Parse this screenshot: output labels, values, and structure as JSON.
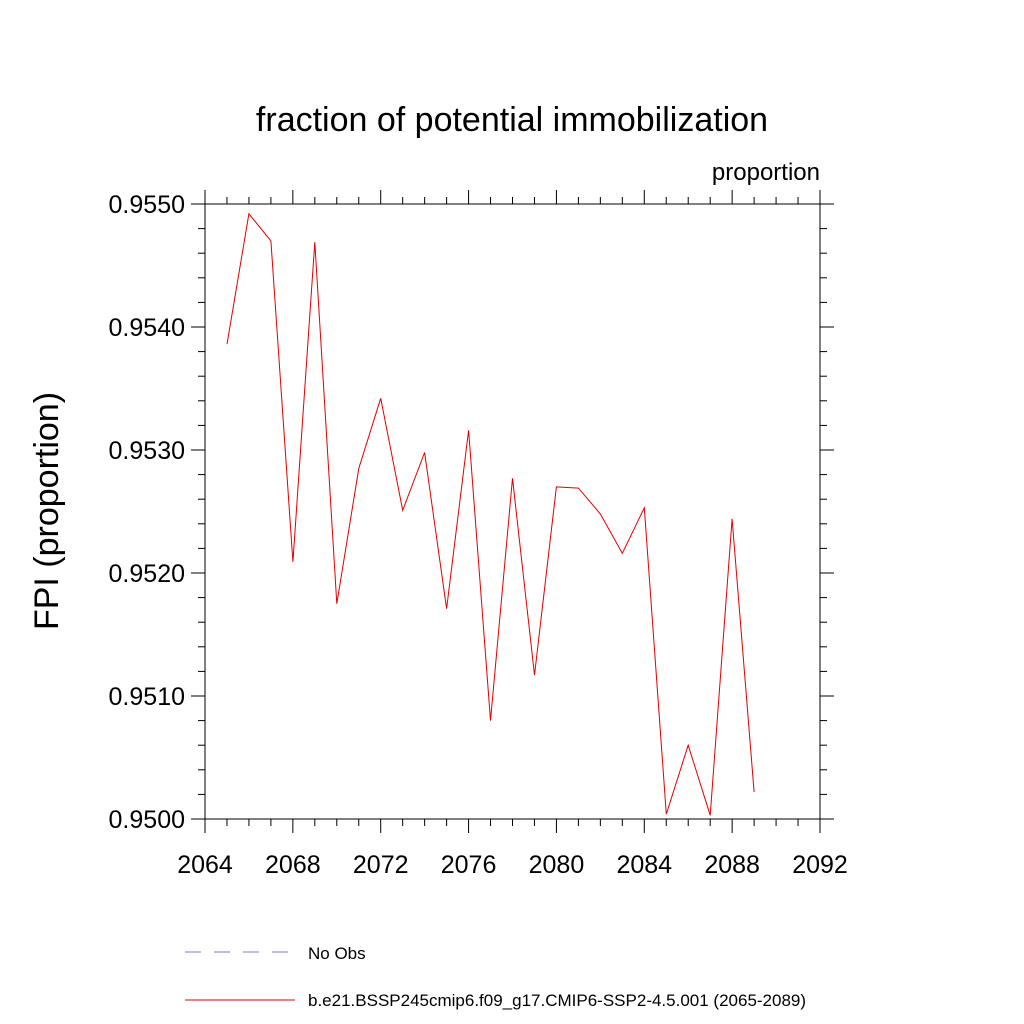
{
  "chart_data": {
    "type": "line",
    "title": "fraction of potential immobilization",
    "subtitle": "proportion",
    "xlabel": "",
    "ylabel": "FPI  (proportion)",
    "xlim": [
      2064,
      2092
    ],
    "ylim": [
      0.95,
      0.955
    ],
    "x_ticks": [
      "2064",
      "2068",
      "2072",
      "2076",
      "2080",
      "2084",
      "2088",
      "2092"
    ],
    "y_ticks": [
      "0.9500",
      "0.9510",
      "0.9520",
      "0.9530",
      "0.9540",
      "0.9550"
    ],
    "grid": false,
    "legend_position": "bottom",
    "legend": [
      {
        "label": "No Obs",
        "color": "#7b7bd0",
        "style": "dashed"
      },
      {
        "label": "b.e21.BSSP245cmip6.f09_g17.CMIP6-SSP2-4.5.001 (2065-2089)",
        "color": "#e00000",
        "style": "solid"
      }
    ],
    "series": [
      {
        "name": "b.e21.BSSP245cmip6.f09_g17.CMIP6-SSP2-4.5.001 (2065-2089)",
        "color": "#e00000",
        "x": [
          2065,
          2066,
          2067,
          2068,
          2069,
          2070,
          2071,
          2072,
          2073,
          2074,
          2075,
          2076,
          2077,
          2078,
          2079,
          2080,
          2081,
          2082,
          2083,
          2084,
          2085,
          2086,
          2087,
          2088,
          2089
        ],
        "y": [
          0.95386,
          0.95492,
          0.9547,
          0.95209,
          0.95469,
          0.95175,
          0.95285,
          0.95342,
          0.95251,
          0.95298,
          0.95171,
          0.95316,
          0.9508,
          0.95277,
          0.95117,
          0.9527,
          0.95269,
          0.95248,
          0.95216,
          0.95253,
          0.95004,
          0.9506,
          0.95003,
          0.95244,
          0.95022
        ]
      }
    ]
  }
}
